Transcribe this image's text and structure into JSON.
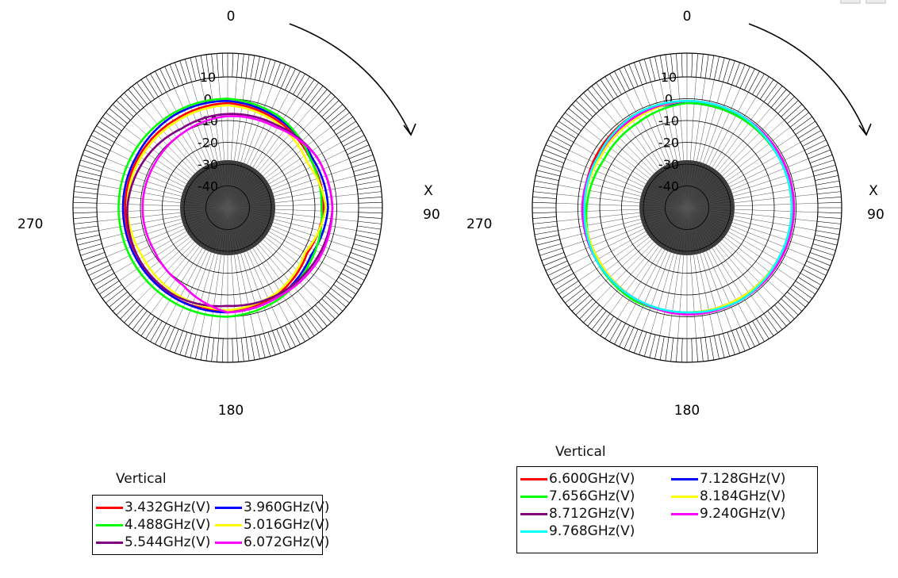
{
  "window_controls": [
    "window-control-1",
    "window-control-2"
  ],
  "chart_data": [
    {
      "type": "polar",
      "legend_title": "Vertical",
      "angle_labels": {
        "top": "0",
        "right": "90",
        "bottom": "180",
        "left": "270"
      },
      "axis_marker": "X",
      "radial_tick_labels": [
        "10",
        "0",
        "-10",
        "-20",
        "-30",
        "-40"
      ],
      "rlim": [
        -50,
        10
      ],
      "rotation_direction": "clockwise",
      "series": [
        {
          "name": "3.432GHz(V)",
          "color": "#ff0000",
          "angles": [
            0,
            30,
            60,
            90,
            120,
            150,
            180,
            210,
            240,
            270,
            300,
            330
          ],
          "values": [
            -2,
            -4,
            -6,
            -6,
            -8,
            -4,
            -3,
            -2,
            -3,
            -3,
            -3,
            -3
          ]
        },
        {
          "name": "3.960GHz(V)",
          "color": "#0000ff",
          "angles": [
            0,
            30,
            60,
            90,
            120,
            150,
            180,
            210,
            240,
            270,
            300,
            330
          ],
          "values": [
            -1,
            -3,
            -5,
            -4,
            -6,
            -3,
            -2,
            -2,
            -2,
            -2,
            -2,
            -1
          ]
        },
        {
          "name": "4.488GHz(V)",
          "color": "#00ff00",
          "angles": [
            0,
            30,
            60,
            90,
            120,
            150,
            180,
            210,
            240,
            270,
            300,
            330
          ],
          "values": [
            0,
            -2,
            -6,
            -7,
            -5,
            -2,
            0,
            0,
            0,
            0,
            0,
            0
          ]
        },
        {
          "name": "5.016GHz(V)",
          "color": "#ffff00",
          "angles": [
            0,
            30,
            60,
            90,
            120,
            150,
            180,
            210,
            240,
            270,
            300,
            330
          ],
          "values": [
            -3,
            -5,
            -8,
            -5,
            -9,
            -5,
            -3,
            -4,
            -5,
            -4,
            -4,
            -4
          ]
        },
        {
          "name": "5.544GHz(V)",
          "color": "#800080",
          "angles": [
            0,
            30,
            60,
            90,
            120,
            150,
            180,
            210,
            240,
            270,
            300,
            330
          ],
          "values": [
            -7,
            -6,
            -3,
            -2,
            -3,
            -4,
            -5,
            -3,
            -3,
            -4,
            -6,
            -8
          ]
        },
        {
          "name": "6.072GHz(V)",
          "color": "#ff00ff",
          "angles": [
            0,
            30,
            60,
            90,
            120,
            150,
            180,
            210,
            240,
            270,
            300,
            330
          ],
          "values": [
            -8,
            -7,
            -3,
            -2,
            -2,
            -3,
            -2,
            -9,
            -11,
            -11,
            -11,
            -10
          ]
        }
      ]
    },
    {
      "type": "polar",
      "legend_title": "Vertical",
      "angle_labels": {
        "top": "0",
        "right": "90",
        "bottom": "180",
        "left": "270"
      },
      "axis_marker": "X",
      "radial_tick_labels": [
        "10",
        "0",
        "-10",
        "-20",
        "-30",
        "-40"
      ],
      "rlim": [
        -50,
        10
      ],
      "rotation_direction": "clockwise",
      "series": [
        {
          "name": "6.600GHz(V)",
          "color": "#ff0000",
          "angles": [
            0,
            30,
            60,
            90,
            120,
            150,
            180,
            210,
            240,
            270,
            300,
            330
          ],
          "values": [
            -2,
            -2,
            -2,
            -2,
            -2,
            -2,
            -1,
            -2,
            -2,
            -3,
            -2,
            -1
          ]
        },
        {
          "name": "7.128GHz(V)",
          "color": "#0000ff",
          "angles": [
            0,
            30,
            60,
            90,
            120,
            150,
            180,
            210,
            240,
            270,
            300,
            330
          ],
          "values": [
            -2,
            -2,
            -2,
            -2,
            -2,
            -2,
            -2,
            -2,
            -3,
            -3,
            -3,
            -2
          ]
        },
        {
          "name": "7.656GHz(V)",
          "color": "#00ff00",
          "angles": [
            0,
            30,
            60,
            90,
            120,
            150,
            180,
            210,
            240,
            270,
            300,
            330
          ],
          "values": [
            -2,
            -2,
            -2,
            -2,
            -2,
            -2,
            -2,
            -1,
            -2,
            -4,
            -6,
            -5
          ]
        },
        {
          "name": "8.184GHz(V)",
          "color": "#ffff00",
          "angles": [
            0,
            30,
            60,
            90,
            120,
            150,
            180,
            210,
            240,
            270,
            300,
            330
          ],
          "values": [
            -1,
            -1,
            -2,
            -2,
            -2,
            -2,
            -2,
            -2,
            -3,
            -3,
            -4,
            -3
          ]
        },
        {
          "name": "8.712GHz(V)",
          "color": "#800080",
          "angles": [
            0,
            30,
            60,
            90,
            120,
            150,
            180,
            210,
            240,
            270,
            300,
            330
          ],
          "values": [
            -1,
            -1,
            -1,
            -1,
            -1,
            -1,
            -1,
            -2,
            -2,
            -2,
            -3,
            -2
          ]
        },
        {
          "name": "9.240GHz(V)",
          "color": "#ff00ff",
          "angles": [
            0,
            30,
            60,
            90,
            120,
            150,
            180,
            210,
            240,
            270,
            300,
            330
          ],
          "values": [
            -1,
            -1,
            -1,
            -1,
            -1,
            -1,
            -1,
            -2,
            -2,
            -2,
            -3,
            -2
          ]
        },
        {
          "name": "9.768GHz(V)",
          "color": "#00ffff",
          "angles": [
            0,
            30,
            60,
            90,
            120,
            150,
            180,
            210,
            240,
            270,
            300,
            330
          ],
          "values": [
            -1,
            -1,
            -2,
            -2,
            -2,
            -1,
            -2,
            -2,
            -2,
            -3,
            -3,
            -1
          ]
        }
      ]
    }
  ]
}
